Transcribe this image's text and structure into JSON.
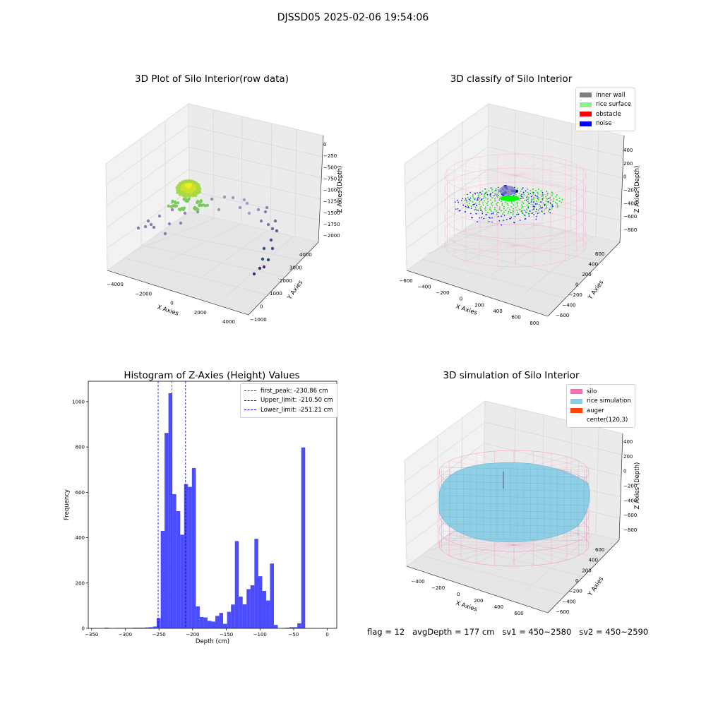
{
  "suptitle": "DJSSD05 2025-02-06 19:54:06",
  "footer": "flag = 12   avgDepth = 177 cm   sv1 = 450~2580   sv2 = 450~2590",
  "panels": {
    "raw": {
      "title": "3D Plot of Silo Interior(row data)",
      "xlabel": "X Axies",
      "ylabel": "Y Axies",
      "zlabel": "Z Axies (Depth)",
      "xticks": [
        "−4000",
        "−2000",
        "0",
        "2000",
        "4000"
      ],
      "yticks": [
        "−1000",
        "0",
        "1000",
        "2000",
        "3000",
        "4000"
      ],
      "zticks": [
        "0",
        "−250",
        "−500",
        "−750",
        "−1000",
        "−1250",
        "−1500",
        "−1750",
        "−2000"
      ]
    },
    "classify": {
      "title": "3D classify of Silo Interior",
      "xlabel": "X Axies",
      "ylabel": "Y Axies",
      "zlabel": "Z Axies (Depth)",
      "xticks": [
        "−600",
        "−400",
        "−200",
        "0",
        "200",
        "400",
        "600",
        "800"
      ],
      "yticks": [
        "−600",
        "−400",
        "−200",
        "0",
        "200",
        "400",
        "600"
      ],
      "zticks": [
        "400",
        "200",
        "0",
        "−200",
        "−400",
        "−600",
        "−800"
      ],
      "legend": [
        {
          "label": "inner wall",
          "color": "#808080"
        },
        {
          "label": "rice surface",
          "color": "#90ee90"
        },
        {
          "label": "obstacle",
          "color": "#ff0000"
        },
        {
          "label": "noise",
          "color": "#0000ff"
        }
      ]
    },
    "simulation": {
      "title": "3D simulation of Silo Interior",
      "xlabel": "X Axies",
      "ylabel": "Y Axies",
      "zlabel": "Z Axies (Depth)",
      "xticks": [
        "−400",
        "−200",
        "0",
        "200",
        "400",
        "600"
      ],
      "yticks": [
        "−600",
        "−400",
        "−200",
        "0",
        "200",
        "400",
        "600"
      ],
      "zticks": [
        "400",
        "200",
        "0",
        "−200",
        "−400",
        "−600",
        "−800"
      ],
      "legend": [
        {
          "label": "silo",
          "color": "#ff69b4"
        },
        {
          "label": "rice simulation",
          "color": "#87ceeb"
        },
        {
          "label": "auger",
          "color": "#ff4500"
        },
        {
          "label": "center(120,3)",
          "color": ""
        }
      ]
    }
  },
  "chart_data": [
    {
      "type": "bar",
      "title": "Histogram of Z-Axies (Height) Values",
      "xlabel": "Depth (cm)",
      "ylabel": "Frequency",
      "color": "#0000ff",
      "xlim": [
        -355,
        14
      ],
      "ylim": [
        0,
        1090
      ],
      "xticks": [
        -350,
        -300,
        -250,
        -200,
        -150,
        -100,
        -50,
        0
      ],
      "yticks": [
        0,
        200,
        400,
        600,
        800,
        1000
      ],
      "bin_width": 5.8,
      "bins": [
        {
          "x": -328,
          "v": 3
        },
        {
          "x": -322,
          "v": 1
        },
        {
          "x": -316,
          "v": 1
        },
        {
          "x": -310,
          "v": 2
        },
        {
          "x": -304,
          "v": 2
        },
        {
          "x": -298,
          "v": 2
        },
        {
          "x": -292,
          "v": 2
        },
        {
          "x": -286,
          "v": 3
        },
        {
          "x": -280,
          "v": 3
        },
        {
          "x": -274,
          "v": 3
        },
        {
          "x": -268,
          "v": 4
        },
        {
          "x": -262,
          "v": 5
        },
        {
          "x": -256,
          "v": 8
        },
        {
          "x": -250.5,
          "v": 45
        },
        {
          "x": -244.5,
          "v": 430
        },
        {
          "x": -238.8,
          "v": 862
        },
        {
          "x": -233,
          "v": 1037
        },
        {
          "x": -227.2,
          "v": 592
        },
        {
          "x": -221.4,
          "v": 517
        },
        {
          "x": -215.6,
          "v": 413
        },
        {
          "x": -209.8,
          "v": 636
        },
        {
          "x": -204,
          "v": 624
        },
        {
          "x": -198.2,
          "v": 707
        },
        {
          "x": -192.4,
          "v": 97
        },
        {
          "x": -186.6,
          "v": 50
        },
        {
          "x": -180.8,
          "v": 48
        },
        {
          "x": -175,
          "v": 33
        },
        {
          "x": -169.2,
          "v": 30
        },
        {
          "x": -163.4,
          "v": 55
        },
        {
          "x": -157.6,
          "v": 68
        },
        {
          "x": -151.8,
          "v": 20
        },
        {
          "x": -146,
          "v": 73
        },
        {
          "x": -140.2,
          "v": 105
        },
        {
          "x": -134.4,
          "v": 385
        },
        {
          "x": -128.6,
          "v": 140
        },
        {
          "x": -122.8,
          "v": 106
        },
        {
          "x": -117,
          "v": 173
        },
        {
          "x": -111.2,
          "v": 190
        },
        {
          "x": -105.4,
          "v": 395
        },
        {
          "x": -99.6,
          "v": 230
        },
        {
          "x": -93.8,
          "v": 165
        },
        {
          "x": -88,
          "v": 123
        },
        {
          "x": -82.2,
          "v": 286
        },
        {
          "x": -76.4,
          "v": 15
        },
        {
          "x": -64.8,
          "v": 2
        },
        {
          "x": -59,
          "v": 3
        },
        {
          "x": -53.2,
          "v": 5
        },
        {
          "x": -47.4,
          "v": 5
        },
        {
          "x": -41.6,
          "v": 22
        },
        {
          "x": -35.8,
          "v": 798
        }
      ],
      "lines": [
        {
          "name": "first_peak: -230.86 cm",
          "x": -230.86,
          "color": "#ff0000"
        },
        {
          "name": "Upper_limit: -210.50 cm",
          "x": -210.5,
          "color": "#0000cc"
        },
        {
          "name": "Lower_limit: -251.21 cm",
          "x": -251.21,
          "color": "#0000cc"
        }
      ]
    }
  ]
}
